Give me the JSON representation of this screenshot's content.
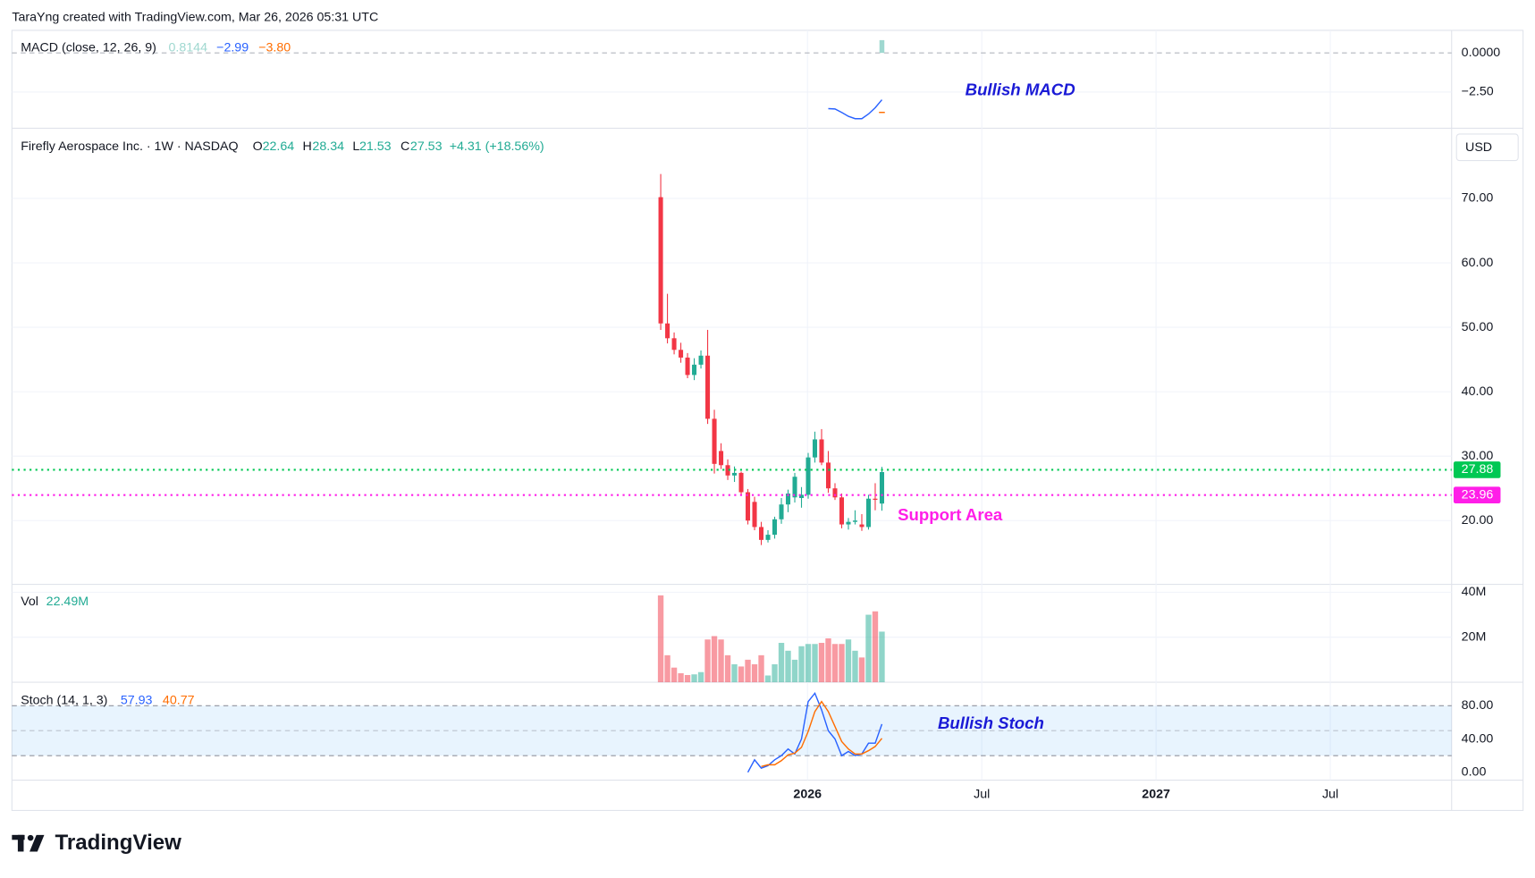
{
  "header": {
    "attribution": "TaraYng created with TradingView.com, Mar 26, 2026 05:31 UTC",
    "brand": "TradingView"
  },
  "x_axis": {
    "xlim": [
      -96.8,
      118
    ],
    "xticks": [
      {
        "value": 21.9,
        "label": "2026",
        "bold": true
      },
      {
        "value": 47.9,
        "label": "Jul"
      },
      {
        "value": 73.9,
        "label": "2027",
        "bold": true
      },
      {
        "value": 99.9,
        "label": "Jul"
      }
    ]
  },
  "chart_data": [
    {
      "type": "macd",
      "title": "MACD (close, 12, 26, 9)",
      "ylim": [
        -4.81,
        1.44
      ],
      "yticks": [
        {
          "value": 0,
          "label": "0.0000"
        },
        {
          "value": -2.5,
          "label": "−2.50"
        }
      ],
      "series": [
        {
          "color": "#9fd8d0",
          "kind": "histogram",
          "values": [
            null,
            null,
            null,
            null,
            null,
            null,
            null,
            null,
            null,
            null,
            null,
            null,
            null,
            null,
            null,
            null,
            null,
            null,
            null,
            null,
            null,
            null,
            null,
            null,
            null,
            null,
            null,
            null,
            null,
            null,
            null,
            null,
            null,
            0.8144
          ]
        },
        {
          "color": "#2962ff",
          "kind": "line",
          "last_label": "−2.99",
          "values": [
            null,
            null,
            null,
            null,
            null,
            null,
            null,
            null,
            null,
            null,
            null,
            null,
            null,
            null,
            null,
            null,
            null,
            null,
            null,
            null,
            null,
            null,
            null,
            null,
            null,
            -3.56,
            -3.58,
            -3.8,
            -4.05,
            -4.2,
            -4.2,
            -3.9,
            -3.5,
            -2.99
          ]
        },
        {
          "color": "#ff6d00",
          "kind": "line",
          "last_label": "−3.80",
          "values": [
            null,
            null,
            null,
            null,
            null,
            null,
            null,
            null,
            null,
            null,
            null,
            null,
            null,
            null,
            null,
            null,
            null,
            null,
            null,
            null,
            null,
            null,
            null,
            null,
            null,
            null,
            null,
            null,
            null,
            null,
            null,
            null,
            null,
            -3.8
          ]
        }
      ],
      "annotation": "Bullish MACD"
    },
    {
      "type": "candlestick",
      "title": "Firefly Aerospace Inc. · 1W · NASDAQ",
      "ohlc_labels": [
        "O",
        "H",
        "L",
        "C"
      ],
      "change_label": "+4.31 (+18.56%)",
      "currency": "USD",
      "up_color": "#22ab94",
      "down_color": "#f23645",
      "open": [
        70.2,
        50.6,
        48.3,
        46.5,
        45.3,
        42.6,
        44.2,
        45.6,
        35.8,
        30.8,
        28.6,
        27.0,
        27.4,
        24.4,
        22.9,
        19.0,
        17.0,
        17.8,
        20.2,
        22.5,
        23.6,
        23.5,
        24.0,
        29.8,
        32.6,
        29.0,
        25.0,
        23.6,
        19.4,
        19.8,
        19.4,
        19.0,
        23.4,
        22.64
      ],
      "high": [
        73.8,
        55.2,
        49.2,
        47.6,
        46.0,
        45.2,
        46.4,
        49.6,
        37.2,
        32.0,
        29.5,
        28.4,
        27.6,
        24.9,
        23.7,
        19.8,
        18.5,
        20.6,
        23.5,
        24.8,
        27.4,
        25.2,
        30.5,
        33.8,
        34.2,
        30.8,
        25.8,
        24.2,
        20.4,
        21.6,
        21.0,
        24.0,
        25.8,
        28.34
      ],
      "low": [
        49.6,
        47.5,
        45.8,
        44.5,
        42.1,
        41.8,
        43.6,
        35.0,
        27.3,
        28.0,
        26.3,
        26.0,
        24.0,
        19.4,
        18.5,
        16.2,
        16.6,
        17.2,
        19.5,
        21.3,
        22.8,
        22.0,
        23.4,
        29.0,
        28.6,
        24.3,
        23.2,
        18.8,
        18.6,
        19.4,
        18.4,
        18.6,
        21.6,
        21.53
      ],
      "close": [
        50.6,
        48.3,
        46.5,
        45.3,
        42.6,
        44.2,
        45.6,
        35.8,
        28.8,
        28.6,
        27.0,
        27.4,
        24.4,
        20.0,
        19.0,
        17.0,
        17.8,
        20.2,
        22.5,
        24.2,
        26.8,
        24.0,
        29.8,
        32.6,
        29.0,
        25.0,
        23.6,
        19.4,
        19.8,
        20.0,
        19.0,
        23.4,
        23.22,
        27.53
      ],
      "ylim": [
        10.1,
        80.9
      ],
      "yticks": [
        {
          "value": 20,
          "label": "20.00"
        },
        {
          "value": 30,
          "label": "30.00"
        },
        {
          "value": 40,
          "label": "40.00"
        },
        {
          "value": 50,
          "label": "50.00"
        },
        {
          "value": 60,
          "label": "60.00"
        },
        {
          "value": 70,
          "label": "70.00"
        }
      ],
      "lines": [
        {
          "value": 27.88,
          "color": "#00c853"
        },
        {
          "value": 23.96,
          "color": "#ff1ee8"
        }
      ],
      "annotation": "Support Area"
    },
    {
      "type": "bar",
      "title": "Vol",
      "last_label": "22.49M",
      "values": [
        38600000,
        12000000,
        6500000,
        4000000,
        3200000,
        3500000,
        4500000,
        19000000,
        20500000,
        19000000,
        12000000,
        8000000,
        7000000,
        10000000,
        8000000,
        12000000,
        3000000,
        8000000,
        17500000,
        14000000,
        10000000,
        16000000,
        17000000,
        17000000,
        17500000,
        19500000,
        17000000,
        17000000,
        19000000,
        14000000,
        11000000,
        30000000,
        31500000,
        22490000
      ],
      "ylim": [
        0,
        43500000
      ],
      "yticks": [
        {
          "value": 20000000,
          "label": "20M"
        },
        {
          "value": 40000000,
          "label": "40M"
        }
      ]
    },
    {
      "type": "line",
      "title": "Stoch (14, 1, 3)",
      "band": [
        20,
        80
      ],
      "middle": 50,
      "band_color": "rgba(33,150,243,0.1)",
      "ylim": [
        -9.4,
        108.2
      ],
      "yticks": [
        {
          "value": 0,
          "label": "0.00"
        },
        {
          "value": 40,
          "label": "40.00"
        },
        {
          "value": 80,
          "label": "80.00"
        }
      ],
      "series": [
        {
          "color": "#2962ff",
          "values": [
            null,
            null,
            null,
            null,
            null,
            null,
            null,
            null,
            null,
            null,
            null,
            null,
            null,
            0,
            15,
            5,
            8,
            15,
            20,
            28,
            22,
            40,
            85,
            95,
            75,
            50,
            40,
            20,
            25,
            20,
            22,
            35,
            35,
            57.93
          ]
        },
        {
          "color": "#ff6d00",
          "values": [
            null,
            null,
            null,
            null,
            null,
            null,
            null,
            null,
            null,
            null,
            null,
            null,
            null,
            null,
            null,
            7,
            9,
            9,
            14,
            21,
            23,
            30,
            49,
            73,
            85,
            73,
            55,
            37,
            28,
            22,
            22,
            26,
            31,
            40.77
          ]
        }
      ],
      "annotation": "Bullish Stoch"
    }
  ]
}
